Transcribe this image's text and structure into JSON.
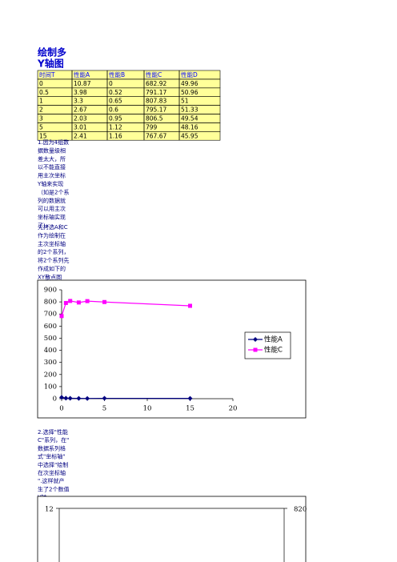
{
  "title": "绘制多Y轴图",
  "table": {
    "header": [
      "时间T",
      "性能A",
      "性能B",
      "性能C",
      "性能D"
    ],
    "rows": [
      [
        "0",
        "10.87",
        "0",
        "682.92",
        "49.96"
      ],
      [
        "0.5",
        "3.98",
        "0.52",
        "791.17",
        "50.96"
      ],
      [
        "1",
        "3.3",
        "0.65",
        "807.83",
        "51"
      ],
      [
        "2",
        "2.67",
        "0.6",
        "795.17",
        "51.33"
      ],
      [
        "3",
        "2.03",
        "0.95",
        "806.5",
        "49.54"
      ],
      [
        "5",
        "3.01",
        "1.12",
        "799",
        "48.16"
      ],
      [
        "15",
        "2.41",
        "1.16",
        "767.67",
        "45.95"
      ]
    ]
  },
  "notes": [
    [
      "1.因为4组数",
      "据数量级相",
      "差太大，所",
      "以不能直接",
      "用主次坐标",
      "Y轴来实现",
      "（如是2个系",
      "列的数据就",
      "可以用主次",
      "坐标轴实现",
      "了）"
    ],
    [
      "先拷选A和C",
      "作为绘制在",
      "主次坐标轴",
      "的2个系列，",
      "将2个系列先",
      "作成如下的",
      "XY散点图"
    ],
    [
      "2.选择\"性能",
      "C\"系列，在\"",
      "数据系列格",
      "式\"坐标轴\"",
      "中选择\"绘制",
      "在次坐标轴",
      "\".这样就产",
      "生了2个数值",
      "Y轴"
    ]
  ],
  "chart_data": [
    {
      "type": "scatter",
      "lines": true,
      "x": [
        0,
        0.5,
        1,
        2,
        3,
        5,
        15
      ],
      "series": [
        {
          "name": "性能A",
          "color": "#000080",
          "marker": "diamond",
          "values": [
            10.87,
            3.98,
            3.3,
            2.67,
            2.03,
            3.01,
            2.41
          ]
        },
        {
          "name": "性能C",
          "color": "#ff00ff",
          "marker": "square",
          "values": [
            682.92,
            791.17,
            807.83,
            795.17,
            806.5,
            799,
            767.67
          ]
        }
      ],
      "xlim": [
        0,
        20
      ],
      "xticks": [
        0,
        5,
        10,
        15,
        20
      ],
      "ylim": [
        0,
        900
      ],
      "yticks": [
        0,
        100,
        200,
        300,
        400,
        500,
        600,
        700,
        800,
        900
      ],
      "legend": "right"
    },
    {
      "type": "scatter",
      "yticks": [
        12
      ],
      "y2ticks": [
        820
      ]
    }
  ]
}
